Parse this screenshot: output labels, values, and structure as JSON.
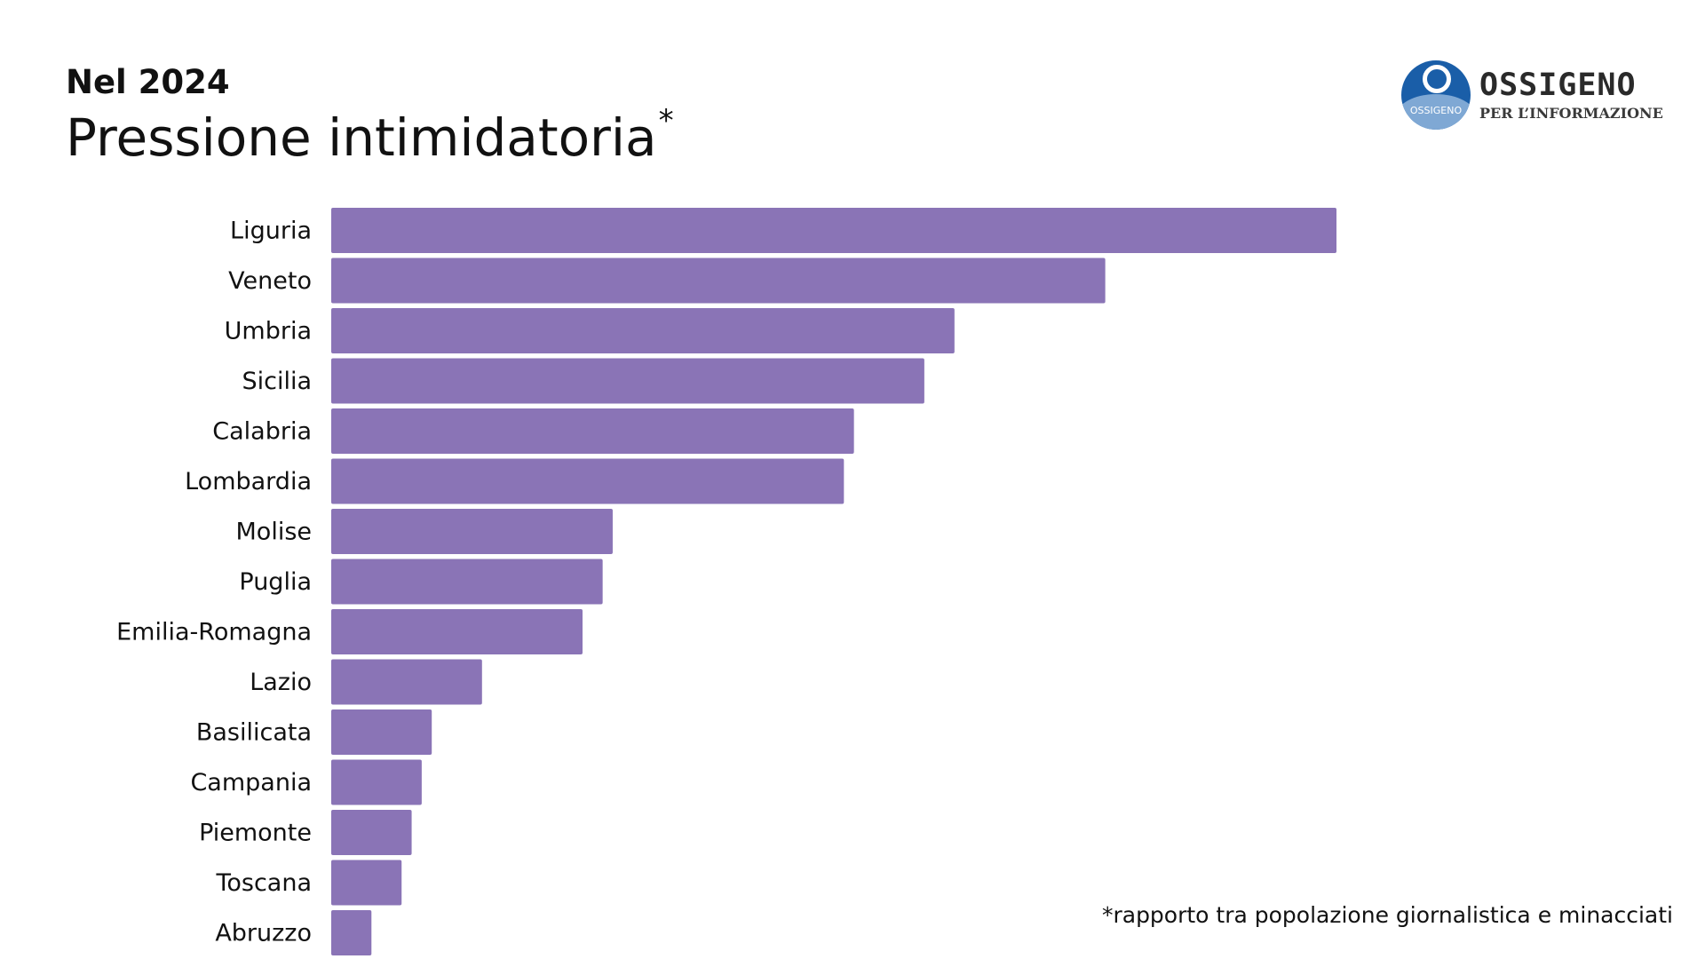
{
  "header": {
    "subtitle": "Nel 2024",
    "title": "Pressione intimidatoria",
    "title_mark": "*"
  },
  "logo": {
    "name": "OSSIGENO",
    "tagline": "PER L’INFORMAZIONE",
    "badge_text": "OSSIGENO"
  },
  "footnote": "*rapporto tra popolazione giornalistica e minacciati",
  "chart_data": {
    "type": "bar",
    "orientation": "horizontal",
    "title": "Pressione intimidatoria*",
    "subtitle": "Nel 2024",
    "categories": [
      "Liguria",
      "Veneto",
      "Umbria",
      "Sicilia",
      "Calabria",
      "Lombardia",
      "Molise",
      "Puglia",
      "Emilia-Romagna",
      "Lazio",
      "Basilicata",
      "Campania",
      "Piemonte",
      "Toscana",
      "Abruzzo"
    ],
    "values": [
      100,
      77,
      62,
      59,
      52,
      51,
      28,
      27,
      25,
      15,
      10,
      9,
      8,
      7,
      4
    ],
    "xlabel": "",
    "ylabel": "",
    "xlim": [
      0,
      100
    ],
    "grid": false,
    "legend": "none",
    "bar_color": "#8a74b6"
  }
}
